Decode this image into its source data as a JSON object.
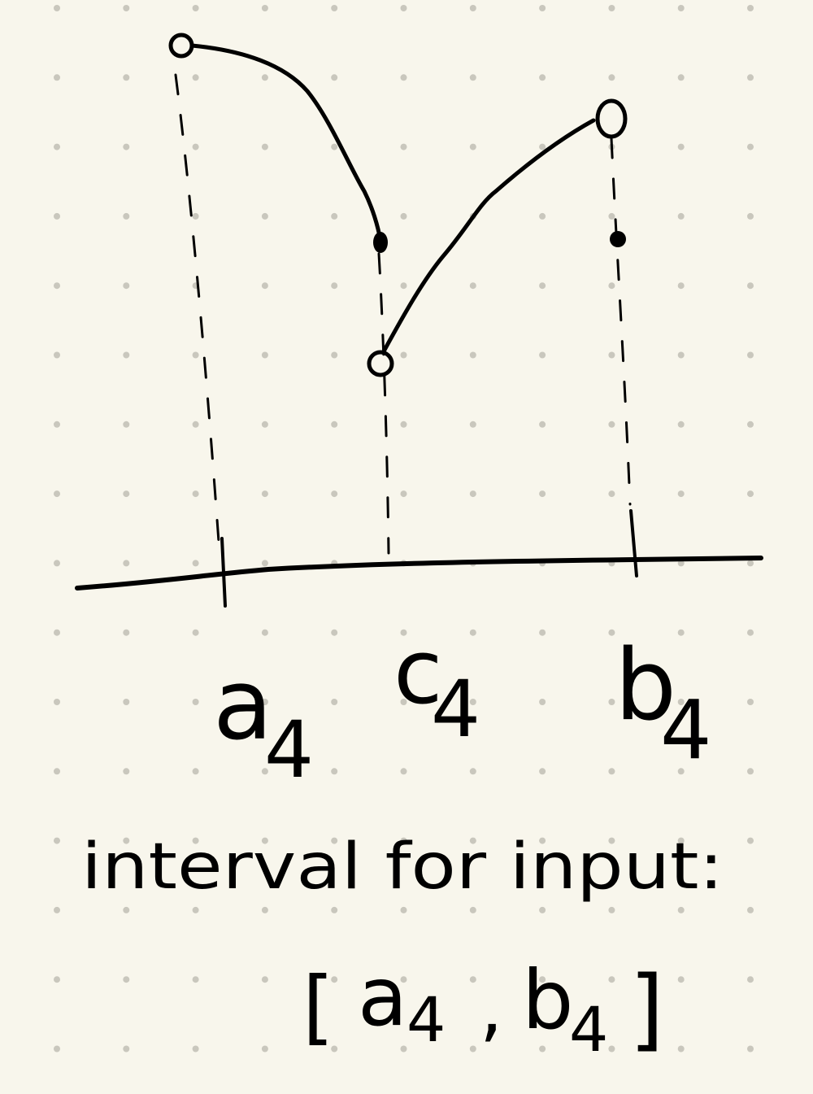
{
  "paper": {
    "background": "#f8f6ec",
    "dot_color": "#c9c7bd",
    "ink": "#000000"
  },
  "labels": {
    "a": {
      "base": "a",
      "sub": "4"
    },
    "c": {
      "base": "c",
      "sub": "4"
    },
    "b": {
      "base": "b",
      "sub": "4"
    }
  },
  "note": {
    "line1": "interval for input:",
    "line2_open": "[",
    "line2_a": "a",
    "line2_a_sub": "4",
    "line2_sep": ",",
    "line2_b": "b",
    "line2_b_sub": "4",
    "line2_close": "]"
  },
  "points": [
    {
      "name": "left-endpoint",
      "style": "open"
    },
    {
      "name": "c-upper-point",
      "style": "filled"
    },
    {
      "name": "c-lower-point",
      "style": "open"
    },
    {
      "name": "right-endpoint",
      "style": "open"
    },
    {
      "name": "b-value-point",
      "style": "filled"
    }
  ]
}
